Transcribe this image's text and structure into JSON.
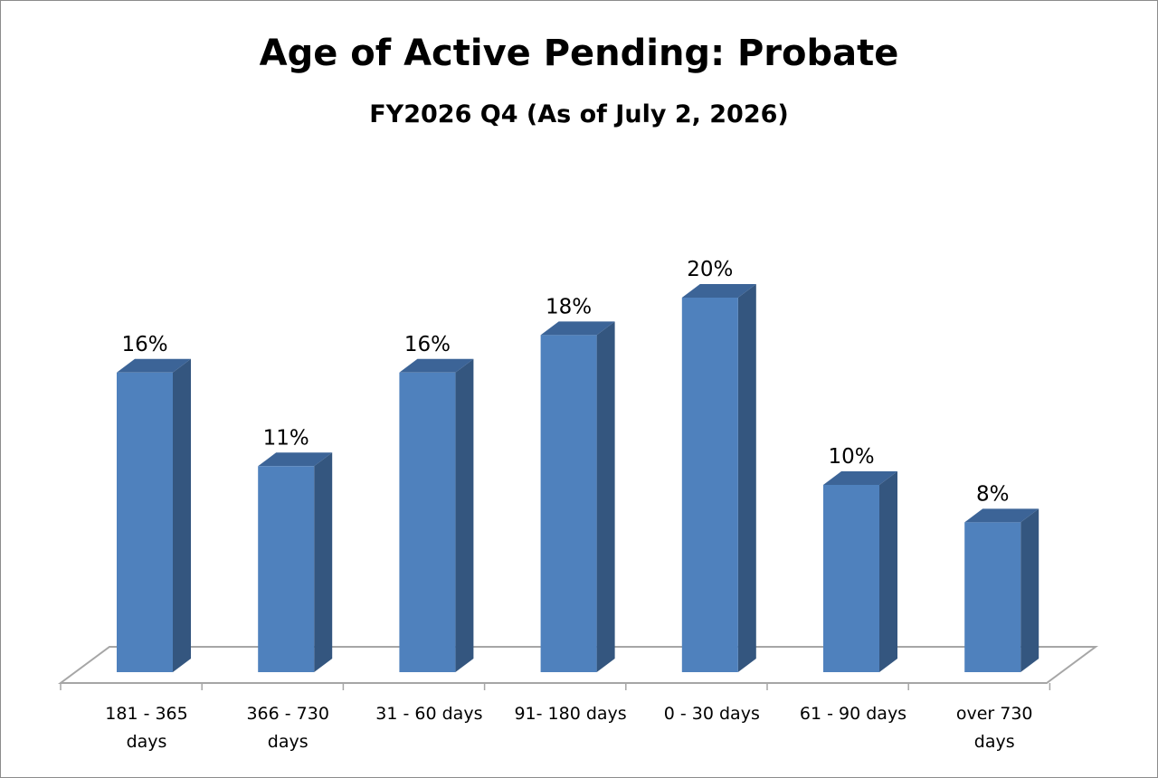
{
  "chart_data": {
    "type": "bar",
    "title": "Age of Active Pending: Probate",
    "subtitle": "FY2026 Q4 (As of July 2, 2026)",
    "categories": [
      [
        "181 - 365",
        "days"
      ],
      [
        "366 - 730",
        "days"
      ],
      [
        "31 - 60 days"
      ],
      [
        "91- 180 days"
      ],
      [
        "0 - 30 days"
      ],
      [
        "61 - 90 days"
      ],
      [
        "over 730",
        "days"
      ]
    ],
    "values": [
      16,
      11,
      16,
      18,
      20,
      10,
      8
    ],
    "data_labels": [
      "16%",
      "11%",
      "16%",
      "18%",
      "20%",
      "10%",
      "8%"
    ],
    "value_unit": "%",
    "xlabel": "",
    "ylabel": "",
    "three_d": true,
    "grid": false,
    "legend": "none",
    "colors": {
      "bar_front": "#4f81bd",
      "bar_side": "#34567f",
      "bar_top": "#3c6497",
      "floor_line": "#a6a6a6"
    }
  }
}
